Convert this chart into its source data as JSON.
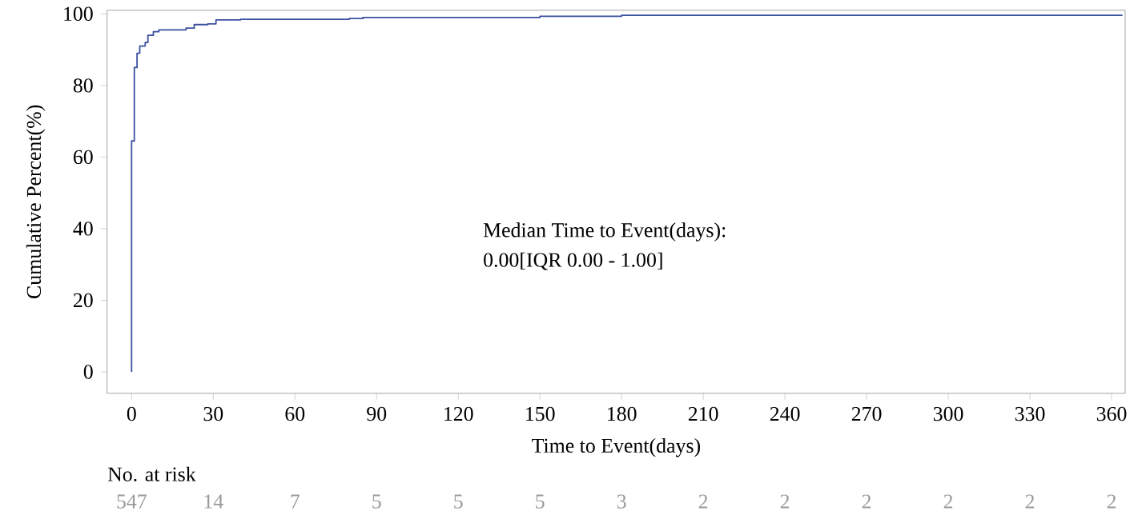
{
  "chart_data": {
    "type": "step",
    "xlabel": "Time to Event(days)",
    "ylabel": "Cumulative Percent(%)",
    "x": [
      0,
      0,
      1,
      2,
      3,
      5,
      6,
      8,
      10,
      20,
      23,
      28,
      31,
      40,
      80,
      85,
      150,
      180,
      364
    ],
    "values": [
      0,
      64.5,
      85,
      89,
      91,
      92,
      94,
      95,
      95.5,
      96,
      97,
      97.2,
      98.3,
      98.5,
      98.7,
      99,
      99.3,
      99.6,
      99.6
    ],
    "color": "#3b4fa0",
    "marker": "none",
    "grid": false,
    "xlim": [
      -9,
      365
    ],
    "ylim": [
      -6,
      101
    ],
    "xticks": [
      0,
      30,
      60,
      90,
      120,
      150,
      180,
      210,
      240,
      270,
      300,
      330,
      360
    ],
    "yticks": [
      0,
      20,
      40,
      60,
      80,
      100
    ],
    "annotations": [
      "Median Time to Event(days):",
      "0.00[IQR 0.00 - 1.00]",
      "No. at risk",
      "547",
      "14",
      "7",
      "5",
      "5",
      "5",
      "3",
      "2",
      "2",
      "2",
      "2",
      "2",
      "2"
    ]
  }
}
